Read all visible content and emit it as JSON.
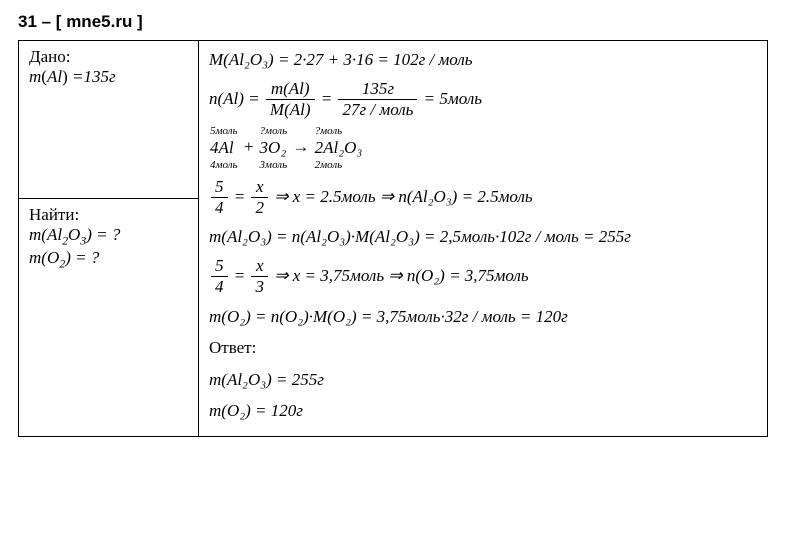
{
  "header": "31 – [ mne5.ru ]",
  "given": {
    "title": "Дано:",
    "line1_pre": "m",
    "line1_in": "Al",
    "line1_post": " =135г"
  },
  "find": {
    "title": "Найти:",
    "line1_pre": "m",
    "line1_f": "Al",
    "line1_s1": "2",
    "line1_f2": "O",
    "line1_s2": "3",
    "line1_post": " = ?",
    "line2_pre": "m",
    "line2_f": "O",
    "line2_s": "2",
    "line2_post": " = ?"
  },
  "sol": {
    "l1": "M(Al₂O₃) = 2·27 + 3·16 = 102г / моль",
    "l2_lhs": "n(Al) = ",
    "l2_f1n": "m(Al)",
    "l2_f1d": "M(Al)",
    "l2_eq": " = ",
    "l2_f2n": "135г",
    "l2_f2d": "27г / моль",
    "l2_res": " = 5моль",
    "r_t1": "5моль",
    "r_m1": "4Al",
    "r_b1": "4моль",
    "r_plus": " + ",
    "r_t2": "?моль",
    "r_m2": "3O₂",
    "r_b2": "3моль",
    "r_arr": " → ",
    "r_t3": "?моль",
    "r_m3": "2Al₂O₃",
    "r_b3": "2моль",
    "l4_f1n": "5",
    "l4_f1d": "4",
    "l4_eq1": " = ",
    "l4_f2n": "x",
    "l4_f2d": "2",
    "l4_res": " ⇒ x = 2.5моль ⇒ n(Al₂O₃) = 2.5моль",
    "l5": "m(Al₂O₃) = n(Al₂O₃)·M(Al₂O₃) = 2,5моль·102г / моль = 255г",
    "l6_f1n": "5",
    "l6_f1d": "4",
    "l6_eq1": " = ",
    "l6_f2n": "x",
    "l6_f2d": "3",
    "l6_res": " ⇒ x = 3,75моль ⇒ n(O₂) = 3,75моль",
    "l7": "m(O₂) = n(O₂)·M(O₂) = 3,75моль·32г / моль = 120г",
    "ans_title": "Ответ:",
    "ans1": "m(Al₂O₃) = 255г",
    "ans2": "m(O₂) = 120г"
  }
}
